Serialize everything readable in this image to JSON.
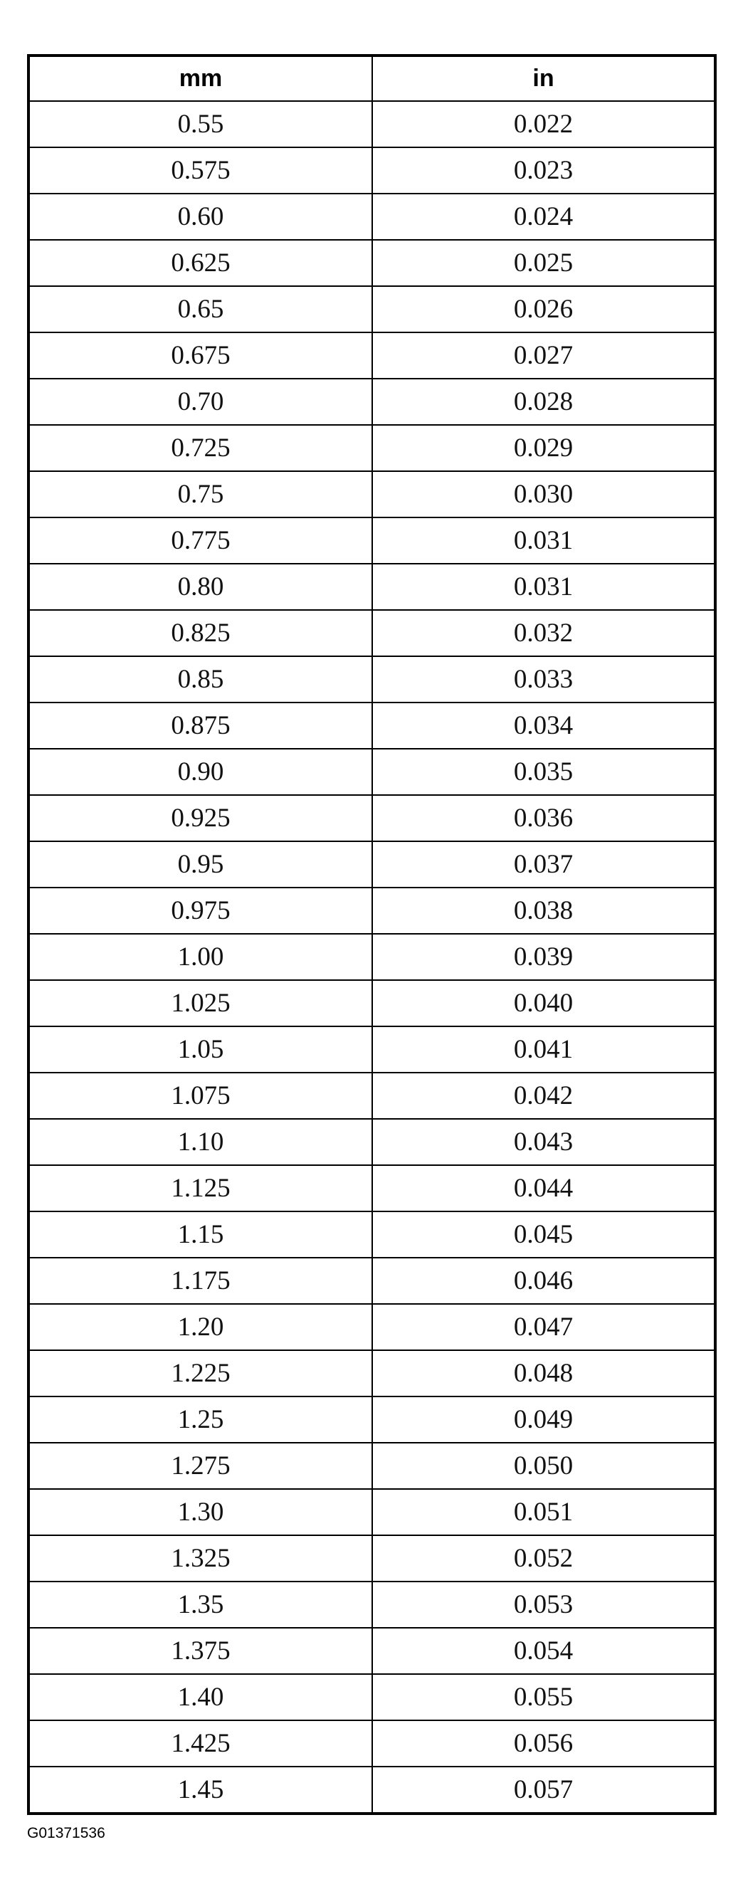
{
  "table": {
    "headers": [
      "mm",
      "in"
    ],
    "rows": [
      [
        "0.55",
        "0.022"
      ],
      [
        "0.575",
        "0.023"
      ],
      [
        "0.60",
        "0.024"
      ],
      [
        "0.625",
        "0.025"
      ],
      [
        "0.65",
        "0.026"
      ],
      [
        "0.675",
        "0.027"
      ],
      [
        "0.70",
        "0.028"
      ],
      [
        "0.725",
        "0.029"
      ],
      [
        "0.75",
        "0.030"
      ],
      [
        "0.775",
        "0.031"
      ],
      [
        "0.80",
        "0.031"
      ],
      [
        "0.825",
        "0.032"
      ],
      [
        "0.85",
        "0.033"
      ],
      [
        "0.875",
        "0.034"
      ],
      [
        "0.90",
        "0.035"
      ],
      [
        "0.925",
        "0.036"
      ],
      [
        "0.95",
        "0.037"
      ],
      [
        "0.975",
        "0.038"
      ],
      [
        "1.00",
        "0.039"
      ],
      [
        "1.025",
        "0.040"
      ],
      [
        "1.05",
        "0.041"
      ],
      [
        "1.075",
        "0.042"
      ],
      [
        "1.10",
        "0.043"
      ],
      [
        "1.125",
        "0.044"
      ],
      [
        "1.15",
        "0.045"
      ],
      [
        "1.175",
        "0.046"
      ],
      [
        "1.20",
        "0.047"
      ],
      [
        "1.225",
        "0.048"
      ],
      [
        "1.25",
        "0.049"
      ],
      [
        "1.275",
        "0.050"
      ],
      [
        "1.30",
        "0.051"
      ],
      [
        "1.325",
        "0.052"
      ],
      [
        "1.35",
        "0.053"
      ],
      [
        "1.375",
        "0.054"
      ],
      [
        "1.40",
        "0.055"
      ],
      [
        "1.425",
        "0.056"
      ],
      [
        "1.45",
        "0.057"
      ]
    ]
  },
  "figure_id": "G01371536"
}
